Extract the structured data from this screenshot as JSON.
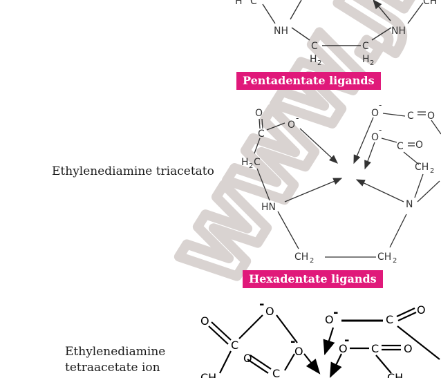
{
  "sections": {
    "pentadentate": {
      "banner": "Pentadentate ligands",
      "atoms": {
        "nh_left": "NH",
        "nh_right": "NH",
        "c_left": "C",
        "c_right": "C",
        "h2_left": "H",
        "h2_right": "H",
        "sub2": "2",
        "h2c_top": "H",
        "c_top": "C",
        "ch_top": "CH"
      }
    },
    "hexadentate_header": {
      "label": "Ethylenediamine triacetato",
      "banner": "Hexadentate ligands",
      "atoms": {
        "o_top": "O",
        "c1": "C",
        "o_minus1": "O",
        "minus": "-",
        "h2c": "H",
        "c_h2c": "C",
        "hn": "HN",
        "ch2_left": "CH",
        "ch2_right": "CH",
        "n": "N",
        "o_m2": "O",
        "c_eq_o2": "C",
        "o_eq2": "O",
        "o_m3": "O",
        "c_eq_o3": "C",
        "o_eq3": "O",
        "ch2_r": "CH",
        "sub2": "2"
      }
    },
    "edta": {
      "label_line1": "Ethylenediamine",
      "label_line2": "tetraacetate ion",
      "atoms": {
        "o_left": "O",
        "c_left": "C",
        "o_minus_a": "O",
        "o_minus_b": "O",
        "o_eq_c": "O",
        "c_c": "C",
        "o_minus_mid": "O",
        "c_mid": "C",
        "o_eq_mid": "O",
        "o_minus_r": "O",
        "c_r": "C",
        "o_eq_r": "O",
        "ch_left": "CH",
        "ch_right": "CH",
        "minus": "-"
      }
    }
  },
  "colors": {
    "banner": "#e0197a",
    "watermark": "#d8d2d0",
    "ink": "#1a1a1a"
  },
  "watermark_text": "WWW.JEE"
}
